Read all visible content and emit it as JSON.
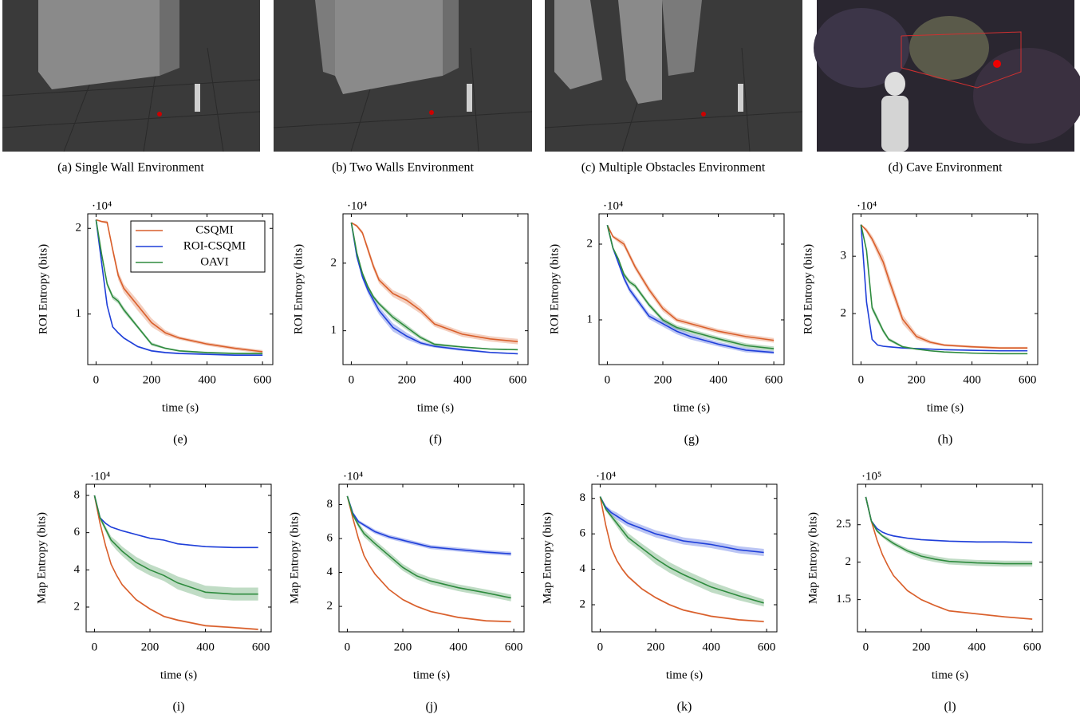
{
  "images": [
    {
      "caption": "(a) Single Wall Environment"
    },
    {
      "caption": "(b) Two Walls Environment"
    },
    {
      "caption": "(c) Multiple Obstacles Environment"
    },
    {
      "caption": "(d) Cave Environment"
    }
  ],
  "chart_data": [
    {
      "type": "line",
      "caption": "(e)",
      "ylabel": "ROI Entropy (bits)",
      "xlabel": "time (s)",
      "multiplier": "·10⁴",
      "legend": "upper right",
      "x": [
        0,
        20,
        40,
        60,
        80,
        100,
        150,
        200,
        250,
        300,
        400,
        500,
        600
      ],
      "xlim": [
        -30,
        637
      ],
      "xticks": [
        0,
        200,
        400,
        600
      ],
      "ylim": [
        0.41,
        2.17
      ],
      "yticks": [
        1,
        2
      ],
      "series": [
        {
          "name": "CSQMI",
          "color": "#d95f2b",
          "values": [
            2.1,
            2.08,
            2.07,
            1.75,
            1.45,
            1.3,
            1.1,
            0.9,
            0.78,
            0.72,
            0.65,
            0.6,
            0.56
          ],
          "errors": [
            0,
            0.01,
            0.02,
            0.04,
            0.05,
            0.05,
            0.06,
            0.05,
            0.03,
            0.02,
            0.02,
            0.02,
            0.02
          ]
        },
        {
          "name": "ROI-CSQMI",
          "color": "#1f3fd9",
          "values": [
            2.1,
            1.6,
            1.1,
            0.85,
            0.78,
            0.72,
            0.62,
            0.57,
            0.55,
            0.54,
            0.53,
            0.52,
            0.52
          ],
          "errors": [
            0,
            0.01,
            0.01,
            0.01,
            0.01,
            0.01,
            0.01,
            0.01,
            0.01,
            0.01,
            0.01,
            0.01,
            0.01
          ]
        },
        {
          "name": "OAVI",
          "color": "#2e8b3e",
          "values": [
            2.1,
            1.7,
            1.35,
            1.2,
            1.15,
            1.05,
            0.85,
            0.65,
            0.6,
            0.57,
            0.55,
            0.54,
            0.54
          ],
          "errors": [
            0,
            0.02,
            0.03,
            0.03,
            0.03,
            0.03,
            0.02,
            0.02,
            0.01,
            0.01,
            0.01,
            0.01,
            0.01
          ]
        }
      ]
    },
    {
      "type": "line",
      "caption": "(f)",
      "ylabel": "ROI Entropy (bits)",
      "xlabel": "time (s)",
      "multiplier": "·10⁴",
      "x": [
        0,
        20,
        40,
        60,
        80,
        100,
        150,
        200,
        250,
        300,
        400,
        500,
        600
      ],
      "xlim": [
        -30,
        637
      ],
      "xticks": [
        0,
        200,
        400,
        600
      ],
      "ylim": [
        0.5,
        2.73
      ],
      "yticks": [
        1,
        2
      ],
      "series": [
        {
          "color": "#d95f2b",
          "values": [
            2.6,
            2.55,
            2.45,
            2.2,
            1.95,
            1.75,
            1.55,
            1.45,
            1.3,
            1.1,
            0.95,
            0.88,
            0.84
          ],
          "errors": [
            0,
            0.02,
            0.03,
            0.05,
            0.05,
            0.05,
            0.05,
            0.06,
            0.05,
            0.04,
            0.04,
            0.04,
            0.04
          ]
        },
        {
          "color": "#1f3fd9",
          "values": [
            2.6,
            2.1,
            1.8,
            1.6,
            1.45,
            1.3,
            1.05,
            0.92,
            0.82,
            0.77,
            0.72,
            0.68,
            0.66
          ],
          "errors": [
            0,
            0.02,
            0.04,
            0.05,
            0.06,
            0.06,
            0.06,
            0.05,
            0.03,
            0.02,
            0.02,
            0.01,
            0.01
          ]
        },
        {
          "color": "#2e8b3e",
          "values": [
            2.6,
            2.15,
            1.85,
            1.65,
            1.5,
            1.4,
            1.2,
            1.05,
            0.9,
            0.8,
            0.76,
            0.73,
            0.72
          ],
          "errors": [
            0,
            0.02,
            0.03,
            0.03,
            0.03,
            0.03,
            0.04,
            0.04,
            0.03,
            0.02,
            0.01,
            0.01,
            0.01
          ]
        }
      ]
    },
    {
      "type": "line",
      "caption": "(g)",
      "ylabel": "ROI Entropy (bits)",
      "xlabel": "time (s)",
      "multiplier": "·10⁴",
      "x": [
        0,
        20,
        40,
        60,
        80,
        100,
        150,
        200,
        250,
        300,
        400,
        500,
        600
      ],
      "xlim": [
        -30,
        637
      ],
      "xticks": [
        0,
        200,
        400,
        600
      ],
      "ylim": [
        0.41,
        2.4
      ],
      "yticks": [
        1,
        2
      ],
      "series": [
        {
          "color": "#d95f2b",
          "values": [
            2.25,
            2.1,
            2.05,
            2.0,
            1.85,
            1.7,
            1.4,
            1.15,
            1.0,
            0.95,
            0.85,
            0.78,
            0.73
          ],
          "errors": [
            0,
            0.02,
            0.03,
            0.04,
            0.04,
            0.04,
            0.04,
            0.04,
            0.03,
            0.03,
            0.03,
            0.03,
            0.03
          ]
        },
        {
          "color": "#1f3fd9",
          "values": [
            2.25,
            1.95,
            1.75,
            1.55,
            1.4,
            1.3,
            1.05,
            0.95,
            0.85,
            0.78,
            0.68,
            0.6,
            0.57
          ],
          "errors": [
            0,
            0.02,
            0.03,
            0.04,
            0.04,
            0.04,
            0.04,
            0.04,
            0.04,
            0.04,
            0.03,
            0.03,
            0.02
          ]
        },
        {
          "color": "#2e8b3e",
          "values": [
            2.25,
            1.95,
            1.8,
            1.6,
            1.5,
            1.45,
            1.2,
            1.0,
            0.9,
            0.85,
            0.75,
            0.66,
            0.62
          ],
          "errors": [
            0,
            0.02,
            0.02,
            0.03,
            0.03,
            0.03,
            0.03,
            0.03,
            0.03,
            0.03,
            0.03,
            0.03,
            0.03
          ]
        }
      ]
    },
    {
      "type": "line",
      "caption": "(h)",
      "ylabel": "ROI Entropy (bits)",
      "xlabel": "time (s)",
      "multiplier": "·10⁴",
      "x": [
        0,
        20,
        40,
        60,
        80,
        100,
        150,
        200,
        250,
        300,
        400,
        500,
        600
      ],
      "xlim": [
        -30,
        637
      ],
      "xticks": [
        0,
        200,
        400,
        600
      ],
      "ylim": [
        1.11,
        3.74
      ],
      "yticks": [
        2,
        3
      ],
      "series": [
        {
          "color": "#d95f2b",
          "values": [
            3.55,
            3.45,
            3.3,
            3.1,
            2.9,
            2.6,
            1.9,
            1.6,
            1.5,
            1.45,
            1.42,
            1.4,
            1.4
          ],
          "errors": [
            0,
            0.04,
            0.06,
            0.08,
            0.1,
            0.1,
            0.08,
            0.05,
            0.03,
            0.02,
            0.02,
            0.02,
            0.02
          ]
        },
        {
          "color": "#1f3fd9",
          "values": [
            3.55,
            2.2,
            1.55,
            1.45,
            1.43,
            1.42,
            1.4,
            1.39,
            1.38,
            1.37,
            1.36,
            1.35,
            1.35
          ],
          "errors": [
            0,
            0.02,
            0.01,
            0.01,
            0.01,
            0.01,
            0.01,
            0.01,
            0.01,
            0.01,
            0.01,
            0.01,
            0.01
          ]
        },
        {
          "color": "#2e8b3e",
          "values": [
            3.55,
            3.1,
            2.1,
            1.9,
            1.7,
            1.55,
            1.42,
            1.38,
            1.35,
            1.33,
            1.31,
            1.3,
            1.3
          ],
          "errors": [
            0,
            0.04,
            0.05,
            0.05,
            0.04,
            0.03,
            0.02,
            0.01,
            0.01,
            0.01,
            0.01,
            0.01,
            0.01
          ]
        }
      ]
    },
    {
      "type": "line",
      "caption": "(i)",
      "ylabel": "Map Entropy (bits)",
      "xlabel": "time (s)",
      "multiplier": "·10⁴",
      "x": [
        0,
        20,
        40,
        60,
        80,
        100,
        150,
        200,
        250,
        300,
        400,
        500,
        590
      ],
      "xlim": [
        -30,
        637
      ],
      "xticks": [
        0,
        200,
        400,
        600
      ],
      "ylim": [
        0.67,
        8.6
      ],
      "yticks": [
        2,
        4,
        6,
        8
      ],
      "series": [
        {
          "color": "#d95f2b",
          "values": [
            8,
            6.5,
            5.3,
            4.3,
            3.7,
            3.2,
            2.4,
            1.9,
            1.5,
            1.3,
            1.0,
            0.9,
            0.8
          ],
          "errors": [
            0,
            0.05,
            0.05,
            0.05,
            0.05,
            0.05,
            0.05,
            0.05,
            0.05,
            0.05,
            0.05,
            0.05,
            0.05
          ]
        },
        {
          "color": "#1f3fd9",
          "values": [
            8,
            6.8,
            6.5,
            6.3,
            6.2,
            6.1,
            5.9,
            5.7,
            5.6,
            5.4,
            5.25,
            5.2,
            5.2
          ],
          "errors": [
            0,
            0.03,
            0.03,
            0.03,
            0.03,
            0.03,
            0.03,
            0.03,
            0.03,
            0.03,
            0.03,
            0.03,
            0.03
          ]
        },
        {
          "color": "#2e8b3e",
          "values": [
            8,
            6.8,
            6.2,
            5.6,
            5.3,
            5.0,
            4.4,
            4.0,
            3.7,
            3.3,
            2.8,
            2.7,
            2.7
          ],
          "errors": [
            0,
            0.1,
            0.15,
            0.2,
            0.25,
            0.25,
            0.3,
            0.3,
            0.3,
            0.35,
            0.35,
            0.35,
            0.35
          ]
        }
      ]
    },
    {
      "type": "line",
      "caption": "(j)",
      "ylabel": "Map Entropy (bits)",
      "xlabel": "time (s)",
      "multiplier": "·10⁴",
      "x": [
        0,
        20,
        40,
        60,
        80,
        100,
        150,
        200,
        250,
        300,
        400,
        500,
        590
      ],
      "xlim": [
        -30,
        637
      ],
      "xticks": [
        0,
        200,
        400,
        600
      ],
      "ylim": [
        0.5,
        9.2
      ],
      "yticks": [
        2,
        4,
        6,
        8
      ],
      "series": [
        {
          "color": "#d95f2b",
          "values": [
            8.5,
            7.2,
            6.0,
            5.0,
            4.4,
            3.9,
            3.0,
            2.4,
            2.0,
            1.7,
            1.35,
            1.15,
            1.1
          ],
          "errors": [
            0,
            0.05,
            0.05,
            0.05,
            0.05,
            0.05,
            0.05,
            0.05,
            0.05,
            0.05,
            0.05,
            0.05,
            0.05
          ]
        },
        {
          "color": "#1f3fd9",
          "values": [
            8.5,
            7.5,
            7.0,
            6.8,
            6.6,
            6.4,
            6.1,
            5.9,
            5.7,
            5.5,
            5.35,
            5.2,
            5.1
          ],
          "errors": [
            0,
            0.08,
            0.1,
            0.1,
            0.12,
            0.12,
            0.12,
            0.12,
            0.12,
            0.12,
            0.12,
            0.12,
            0.12
          ]
        },
        {
          "color": "#2e8b3e",
          "values": [
            8.5,
            7.4,
            6.8,
            6.3,
            6.0,
            5.7,
            5.0,
            4.3,
            3.8,
            3.5,
            3.1,
            2.8,
            2.5
          ],
          "errors": [
            0,
            0.1,
            0.15,
            0.2,
            0.2,
            0.2,
            0.2,
            0.2,
            0.2,
            0.2,
            0.2,
            0.2,
            0.2
          ]
        }
      ]
    },
    {
      "type": "line",
      "caption": "(k)",
      "ylabel": "Map Entropy (bits)",
      "xlabel": "time (s)",
      "multiplier": "·10⁴",
      "x": [
        0,
        20,
        40,
        60,
        80,
        100,
        150,
        200,
        250,
        300,
        400,
        500,
        590
      ],
      "xlim": [
        -30,
        637
      ],
      "xticks": [
        0,
        200,
        400,
        600
      ],
      "ylim": [
        0.47,
        8.8
      ],
      "yticks": [
        2,
        4,
        6,
        8
      ],
      "series": [
        {
          "color": "#d95f2b",
          "values": [
            8.1,
            6.5,
            5.2,
            4.5,
            4.0,
            3.6,
            2.9,
            2.4,
            2.0,
            1.7,
            1.35,
            1.15,
            1.05
          ],
          "errors": [
            0,
            0.05,
            0.08,
            0.08,
            0.08,
            0.08,
            0.06,
            0.05,
            0.05,
            0.05,
            0.05,
            0.05,
            0.05
          ]
        },
        {
          "color": "#1f3fd9",
          "values": [
            8.1,
            7.5,
            7.2,
            7.0,
            6.8,
            6.6,
            6.3,
            6.0,
            5.8,
            5.6,
            5.4,
            5.1,
            4.95
          ],
          "errors": [
            0,
            0.1,
            0.15,
            0.2,
            0.2,
            0.2,
            0.2,
            0.2,
            0.2,
            0.2,
            0.2,
            0.2,
            0.2
          ]
        },
        {
          "color": "#2e8b3e",
          "values": [
            8.1,
            7.4,
            7.0,
            6.6,
            6.2,
            5.8,
            5.2,
            4.6,
            4.1,
            3.7,
            3.0,
            2.5,
            2.1
          ],
          "errors": [
            0,
            0.1,
            0.15,
            0.2,
            0.25,
            0.25,
            0.25,
            0.3,
            0.3,
            0.3,
            0.3,
            0.25,
            0.2
          ]
        }
      ]
    },
    {
      "type": "line",
      "caption": "(l)",
      "ylabel": "Map Entropy (bits)",
      "xlabel": "time (s)",
      "multiplier": "·10⁵",
      "x": [
        0,
        20,
        40,
        60,
        80,
        100,
        150,
        200,
        250,
        300,
        400,
        500,
        600
      ],
      "xlim": [
        -30,
        637
      ],
      "xticks": [
        0,
        200,
        400,
        600
      ],
      "ylim": [
        1.07,
        3.04
      ],
      "yticks": [
        1.5,
        2,
        2.5
      ],
      "series": [
        {
          "color": "#d95f2b",
          "values": [
            2.87,
            2.55,
            2.3,
            2.1,
            1.95,
            1.82,
            1.62,
            1.5,
            1.42,
            1.35,
            1.31,
            1.27,
            1.24
          ],
          "errors": [
            0,
            0.01,
            0.01,
            0.01,
            0.01,
            0.01,
            0.01,
            0.01,
            0.01,
            0.01,
            0.01,
            0.01,
            0.01
          ]
        },
        {
          "color": "#1f3fd9",
          "values": [
            2.87,
            2.55,
            2.45,
            2.4,
            2.37,
            2.35,
            2.32,
            2.3,
            2.29,
            2.28,
            2.27,
            2.27,
            2.26
          ],
          "errors": [
            0,
            0.01,
            0.01,
            0.01,
            0.01,
            0.01,
            0.01,
            0.01,
            0.01,
            0.01,
            0.01,
            0.01,
            0.01
          ]
        },
        {
          "color": "#2e8b3e",
          "values": [
            2.87,
            2.55,
            2.42,
            2.35,
            2.3,
            2.25,
            2.15,
            2.08,
            2.04,
            2.01,
            1.99,
            1.98,
            1.98
          ],
          "errors": [
            0,
            0.01,
            0.02,
            0.02,
            0.03,
            0.03,
            0.03,
            0.04,
            0.04,
            0.04,
            0.04,
            0.04,
            0.04
          ]
        }
      ]
    }
  ]
}
